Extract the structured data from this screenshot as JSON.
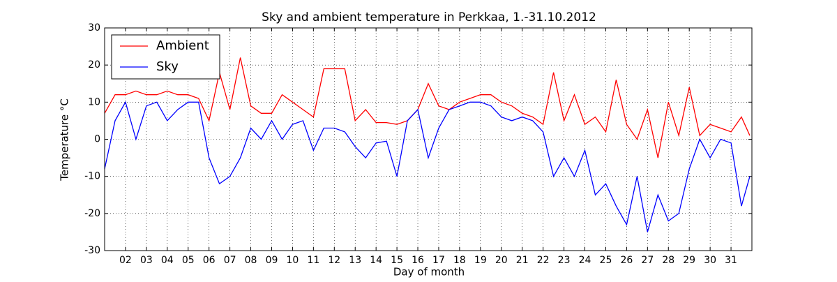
{
  "chart_data": {
    "type": "line",
    "title": "Sky and ambient temperature in Perkkaa, 1.-31.10.2012",
    "x_label": "Day of month",
    "y_label": "Temperature °C",
    "x": [
      1,
      1.5,
      2,
      2.5,
      3,
      3.5,
      4,
      4.5,
      5,
      5.5,
      6,
      6.5,
      7,
      7.5,
      8,
      8.5,
      9,
      9.5,
      10,
      10.5,
      11,
      11.5,
      12,
      12.5,
      13,
      13.5,
      14,
      14.5,
      15,
      15.5,
      16,
      16.5,
      17,
      17.5,
      18,
      18.5,
      19,
      19.5,
      20,
      20.5,
      21,
      21.5,
      22,
      22.5,
      23,
      23.5,
      24,
      24.5,
      25,
      25.5,
      26,
      26.5,
      27,
      27.5,
      28,
      28.5,
      29,
      29.5,
      30,
      30.5,
      31,
      31.5,
      31.9
    ],
    "series": [
      {
        "name": "Ambient",
        "color": "#ff0000",
        "values": [
          7,
          12,
          12,
          13,
          12,
          12,
          13,
          12,
          12,
          11,
          5,
          18,
          8,
          22,
          9,
          7,
          7,
          12,
          10,
          8,
          6,
          19,
          19,
          19,
          5,
          8,
          4.5,
          4.5,
          4,
          5,
          8,
          15,
          9,
          8,
          10,
          11,
          12,
          12,
          10,
          9,
          7,
          6,
          4,
          18,
          5,
          12,
          4,
          6,
          2,
          16,
          4,
          0,
          8,
          -5,
          10,
          1,
          14,
          1,
          4,
          3,
          2,
          6,
          1
        ]
      },
      {
        "name": "Sky",
        "color": "#0000ff",
        "values": [
          -8,
          5,
          10,
          0,
          9,
          10,
          5,
          8,
          10,
          10,
          -5,
          -12,
          -10,
          -5,
          3,
          0,
          5,
          0,
          4,
          5,
          -3,
          3,
          3,
          2,
          -2,
          -5,
          -1,
          -0.5,
          -10,
          5,
          8,
          -5,
          3,
          8,
          9,
          10,
          10,
          9,
          6,
          5,
          6,
          5,
          2,
          -10,
          -5,
          -10,
          -3,
          -15,
          -12,
          -18,
          -23,
          -10,
          -25,
          -15,
          -22,
          -20,
          -8,
          0,
          -5,
          0,
          -1,
          -18,
          -10
        ]
      }
    ],
    "xlim": [
      1,
      32
    ],
    "ylim": [
      -30,
      30
    ],
    "xticks": [
      {
        "value": 2,
        "label": "02"
      },
      {
        "value": 3,
        "label": "03"
      },
      {
        "value": 4,
        "label": "04"
      },
      {
        "value": 5,
        "label": "05"
      },
      {
        "value": 6,
        "label": "06"
      },
      {
        "value": 7,
        "label": "07"
      },
      {
        "value": 8,
        "label": "08"
      },
      {
        "value": 9,
        "label": "09"
      },
      10,
      11,
      12,
      13,
      14,
      15,
      16,
      17,
      18,
      19,
      20,
      21,
      22,
      23,
      24,
      25,
      26,
      27,
      28,
      29,
      30,
      31
    ],
    "yticks": [
      -30,
      -20,
      -10,
      0,
      10,
      20,
      30
    ],
    "grid": true,
    "legend": "upper left"
  }
}
